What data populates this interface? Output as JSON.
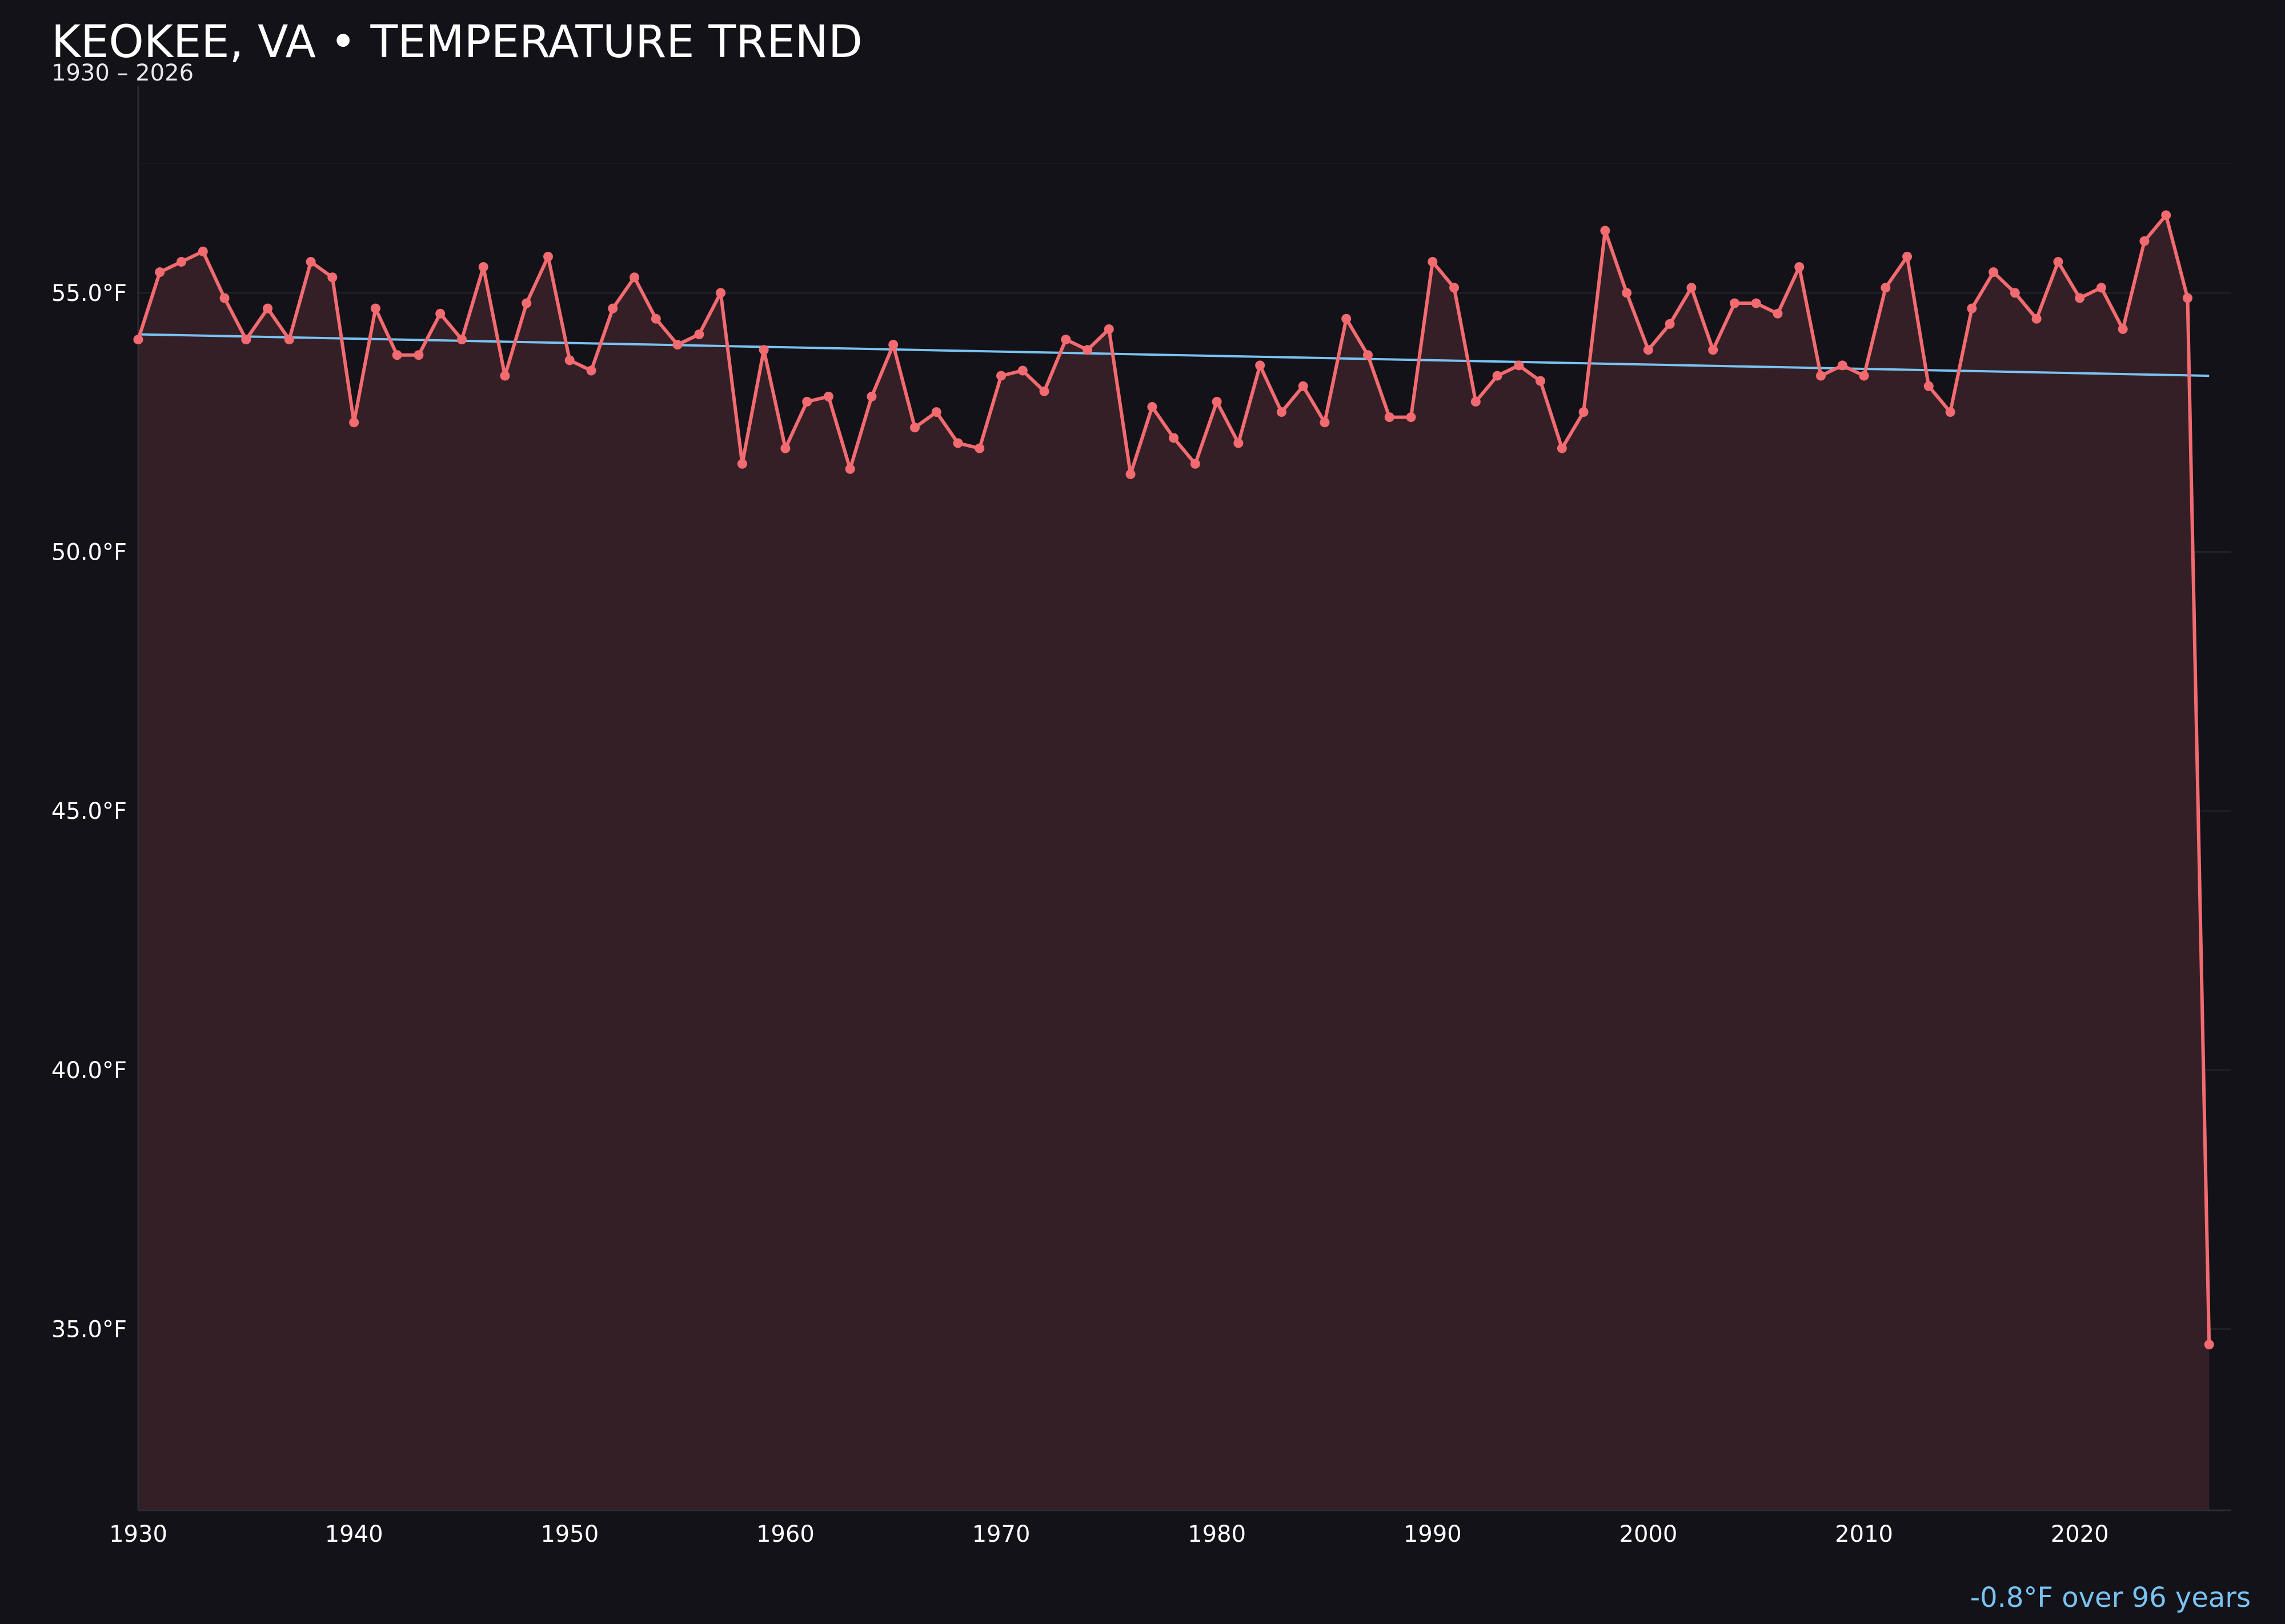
{
  "title": "KEOKEE, VA • TEMPERATURE TREND",
  "subtitle": "1930 – 2026",
  "trend_note": "-0.8°F over 96 years",
  "colors": {
    "background": "#131218",
    "line": "#f26b70",
    "fill": "#351f26",
    "trend": "#79c3f2",
    "grid": "#221f26"
  },
  "chart_data": {
    "type": "line",
    "title": "KEOKEE, VA • TEMPERATURE TREND",
    "subtitle": "1930 – 2026",
    "xlabel": "",
    "ylabel": "",
    "xlim": [
      1930,
      2027
    ],
    "ylim": [
      31.5,
      59
    ],
    "x_ticks": [
      1930,
      1940,
      1950,
      1960,
      1970,
      1980,
      1990,
      2000,
      2010,
      2020
    ],
    "y_ticks": [
      35.0,
      40.0,
      45.0,
      50.0,
      55.0
    ],
    "y_tick_labels": [
      "35.0°F",
      "40.0°F",
      "45.0°F",
      "50.0°F",
      "55.0°F"
    ],
    "grid": true,
    "series": [
      {
        "kind": "line-area",
        "x": [
          1930,
          1931,
          1932,
          1933,
          1934,
          1935,
          1936,
          1937,
          1938,
          1939,
          1940,
          1941,
          1942,
          1943,
          1944,
          1945,
          1946,
          1947,
          1948,
          1949,
          1950,
          1951,
          1952,
          1953,
          1954,
          1955,
          1956,
          1957,
          1958,
          1959,
          1960,
          1961,
          1962,
          1963,
          1964,
          1965,
          1966,
          1967,
          1968,
          1969,
          1970,
          1971,
          1972,
          1973,
          1974,
          1975,
          1976,
          1977,
          1978,
          1979,
          1980,
          1981,
          1982,
          1983,
          1984,
          1985,
          1986,
          1987,
          1988,
          1989,
          1990,
          1991,
          1992,
          1993,
          1994,
          1995,
          1996,
          1997,
          1998,
          1999,
          2000,
          2001,
          2002,
          2003,
          2004,
          2005,
          2006,
          2007,
          2008,
          2009,
          2010,
          2011,
          2012,
          2013,
          2014,
          2015,
          2016,
          2017,
          2018,
          2019,
          2020,
          2021,
          2022,
          2023,
          2024,
          2025,
          2026
        ],
        "values": [
          54.1,
          55.4,
          55.6,
          55.8,
          54.9,
          54.1,
          54.7,
          54.1,
          55.6,
          55.3,
          52.5,
          54.7,
          53.8,
          53.8,
          54.6,
          54.1,
          55.5,
          53.4,
          54.8,
          55.7,
          53.7,
          53.5,
          54.7,
          55.3,
          54.5,
          54.0,
          54.2,
          55.0,
          51.7,
          53.9,
          52.0,
          52.9,
          53.0,
          51.6,
          53.0,
          54.0,
          52.4,
          52.7,
          52.1,
          52.0,
          53.4,
          53.5,
          53.1,
          54.1,
          53.9,
          54.3,
          51.5,
          52.8,
          52.2,
          51.7,
          52.9,
          52.1,
          53.6,
          52.7,
          53.2,
          52.5,
          54.5,
          53.8,
          52.6,
          52.6,
          55.6,
          55.1,
          52.9,
          53.4,
          53.6,
          53.3,
          52.0,
          52.7,
          56.2,
          55.0,
          53.9,
          54.4,
          55.1,
          53.9,
          54.8,
          54.8,
          54.6,
          55.5,
          53.4,
          53.6,
          53.4,
          55.1,
          55.7,
          53.2,
          52.7,
          54.7,
          55.4,
          55.0,
          54.5,
          55.6,
          54.9,
          55.1,
          54.3,
          56.0,
          56.5,
          54.9,
          34.7
        ]
      },
      {
        "kind": "trend",
        "x": [
          1930,
          2026
        ],
        "values": [
          54.2,
          53.4
        ]
      }
    ],
    "legend": "none"
  }
}
